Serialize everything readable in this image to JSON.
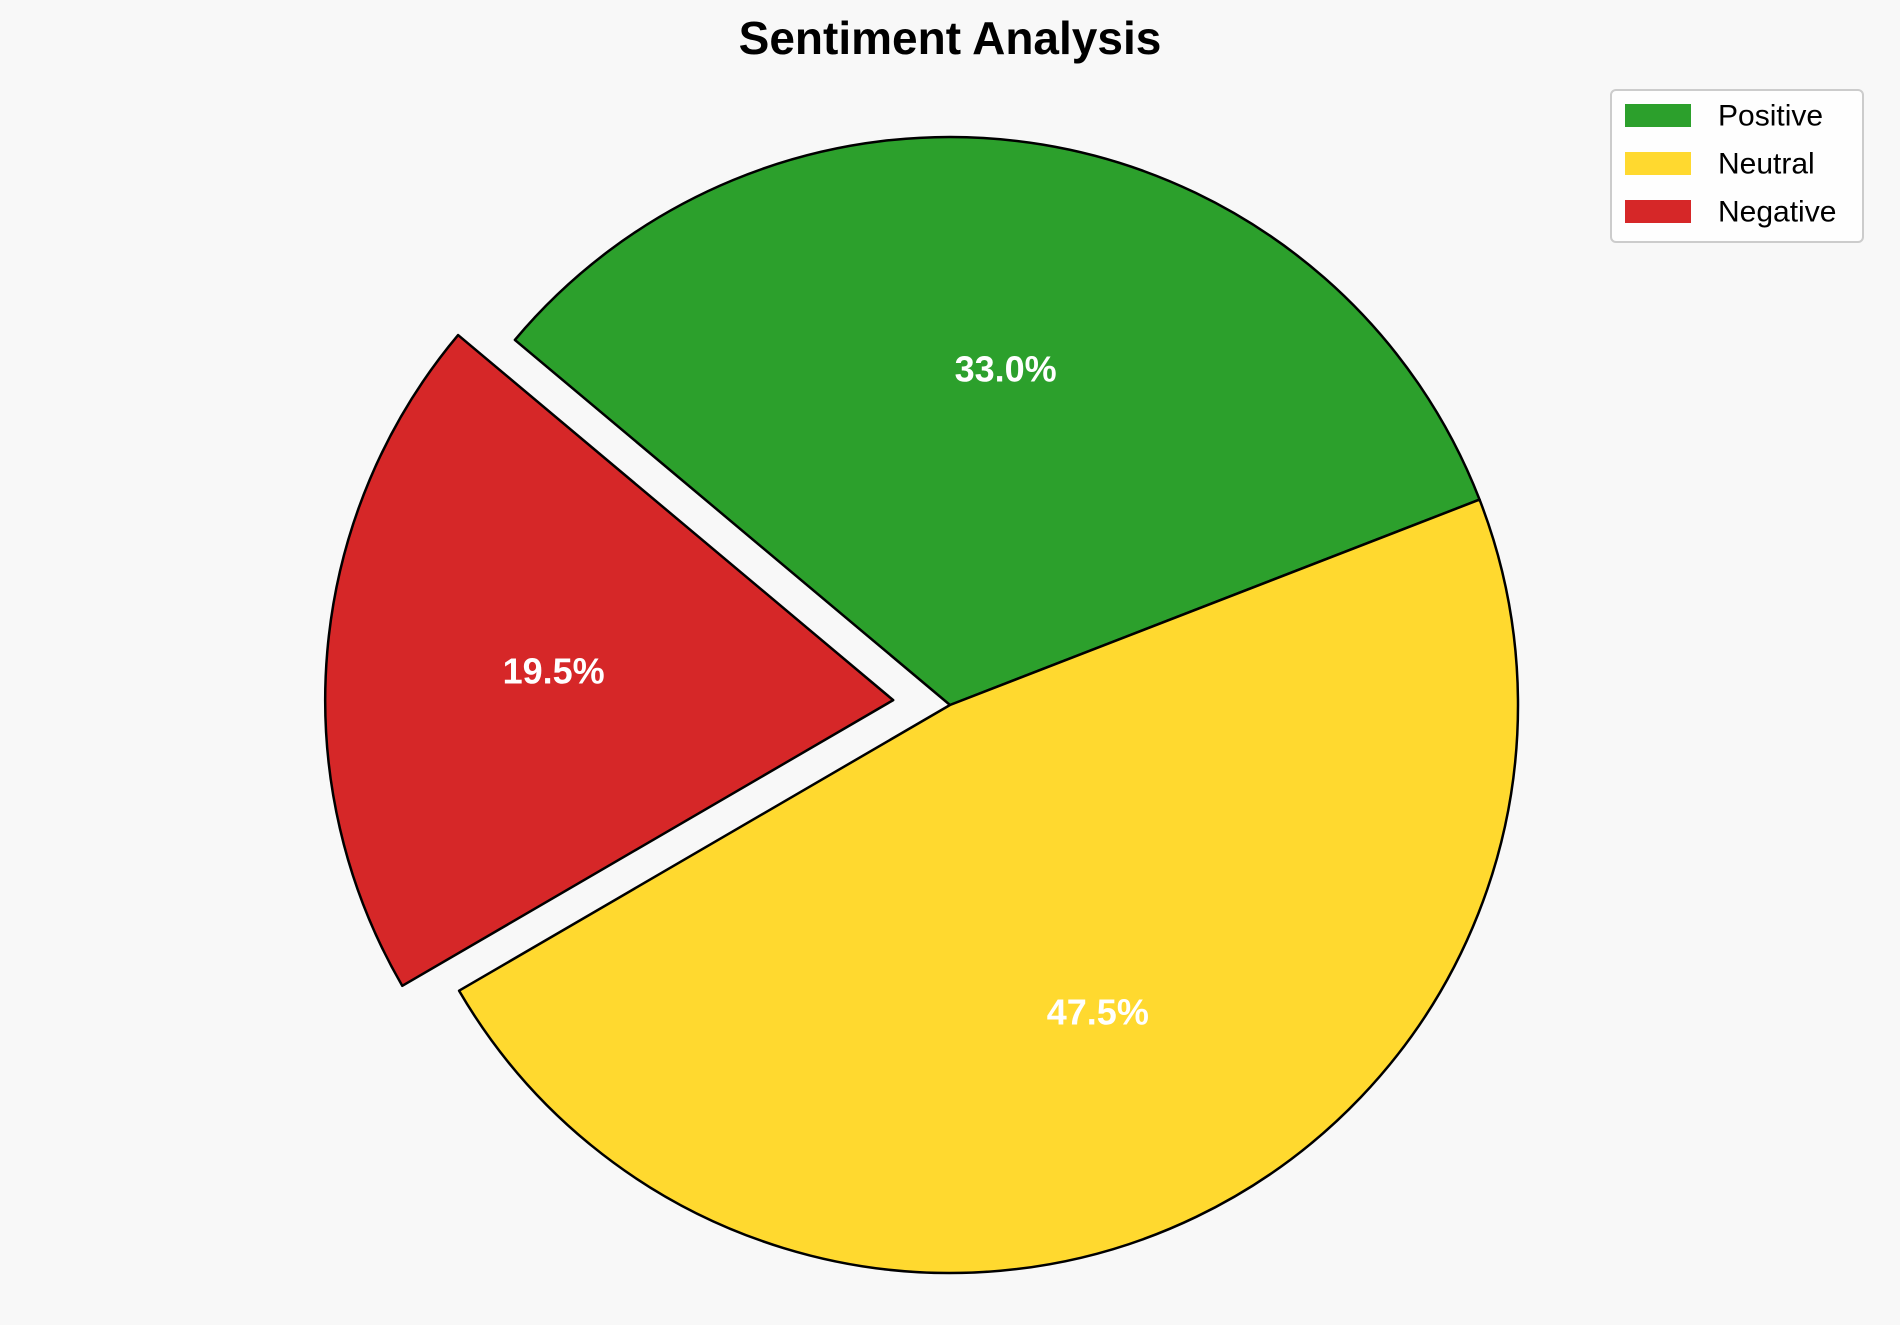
{
  "chart_data": {
    "type": "pie",
    "title": "Sentiment Analysis",
    "slices": [
      {
        "name": "Positive",
        "value": 33.0,
        "label": "33.0%",
        "color": "#2ca02c",
        "exploded": false
      },
      {
        "name": "Neutral",
        "value": 47.5,
        "label": "47.5%",
        "color": "#ffd92f",
        "exploded": false
      },
      {
        "name": "Negative",
        "value": 19.5,
        "label": "19.5%",
        "color": "#d62728",
        "exploded": true
      }
    ],
    "start_angle_deg": 140,
    "direction": "clockwise",
    "edge_color": "#000000",
    "legend_placement": "top-right"
  }
}
